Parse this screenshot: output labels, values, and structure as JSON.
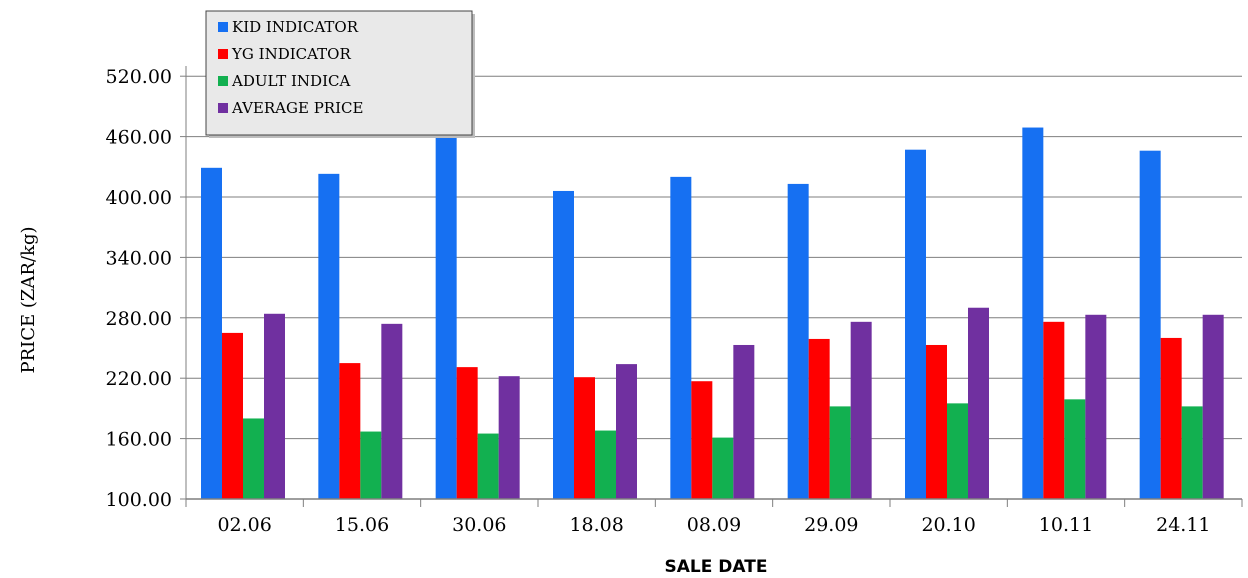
{
  "chart_data": {
    "type": "bar",
    "title": "",
    "xlabel": "SALE DATE",
    "ylabel": "PRICE (ZAR/kg)",
    "ylim": [
      100,
      550
    ],
    "yticks": [
      100,
      160,
      220,
      280,
      340,
      400,
      460,
      520
    ],
    "ytick_labels": [
      "100.00",
      "160.00",
      "220.00",
      "280.00",
      "340.00",
      "400.00",
      "460.00",
      "520.00"
    ],
    "grid": "horizontal",
    "legend_position": "top-left",
    "categories": [
      "02.06",
      "15.06",
      "30.06",
      "18.08",
      "08.09",
      "29.09",
      "20.10",
      "10.11",
      "24.11"
    ],
    "series": [
      {
        "name": "KID INDICATOR",
        "color": "#1670F2",
        "values": [
          429,
          423,
          465,
          406,
          420,
          413,
          447,
          469,
          446
        ]
      },
      {
        "name": "YG INDICATOR",
        "color": "#FF0000",
        "values": [
          265,
          235,
          231,
          221,
          217,
          259,
          253,
          276,
          260
        ]
      },
      {
        "name": "ADULT INDICA",
        "color": "#12B050",
        "values": [
          180,
          167,
          165,
          168,
          161,
          192,
          195,
          199,
          192
        ]
      },
      {
        "name": "AVERAGE PRICE",
        "color": "#7030A0",
        "values": [
          284,
          274,
          222,
          234,
          253,
          276,
          290,
          283,
          283
        ]
      }
    ]
  }
}
